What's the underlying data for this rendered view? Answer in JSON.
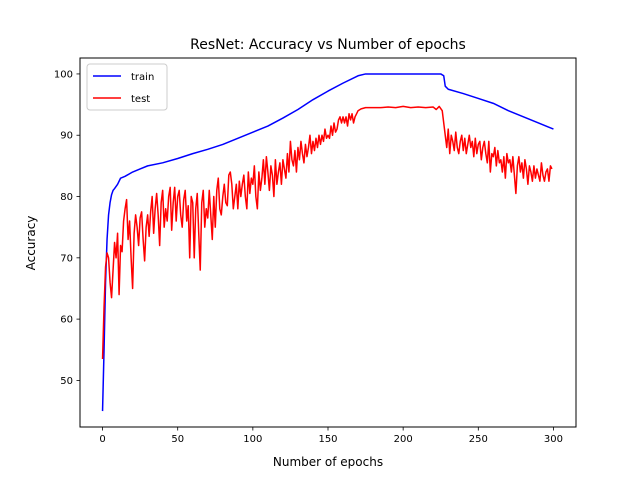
{
  "chart_data": {
    "type": "line",
    "title": "ResNet: Accuracy vs Number of epochs",
    "xlabel": "Number of epochs",
    "ylabel": "Accuracy",
    "xlim": [
      -15,
      315
    ],
    "ylim": [
      42.4,
      102.6
    ],
    "xticks": [
      0,
      50,
      100,
      150,
      200,
      250,
      300
    ],
    "yticks": [
      50,
      60,
      70,
      80,
      90,
      100
    ],
    "grid": false,
    "legend_placement": "top-left",
    "series": [
      {
        "name": "train",
        "color": "#0000ff",
        "points": [
          [
            0,
            45.0
          ],
          [
            1,
            55.0
          ],
          [
            2,
            66.0
          ],
          [
            3,
            73.0
          ],
          [
            4,
            77.0
          ],
          [
            5,
            79.0
          ],
          [
            6,
            80.3
          ],
          [
            7,
            81.0
          ],
          [
            8,
            81.3
          ],
          [
            10,
            82.0
          ],
          [
            12,
            83.0
          ],
          [
            15,
            83.3
          ],
          [
            20,
            84.0
          ],
          [
            25,
            84.5
          ],
          [
            30,
            85.0
          ],
          [
            40,
            85.5
          ],
          [
            50,
            86.2
          ],
          [
            60,
            87.0
          ],
          [
            70,
            87.7
          ],
          [
            80,
            88.5
          ],
          [
            90,
            89.5
          ],
          [
            100,
            90.5
          ],
          [
            110,
            91.5
          ],
          [
            120,
            92.8
          ],
          [
            130,
            94.2
          ],
          [
            140,
            95.8
          ],
          [
            150,
            97.2
          ],
          [
            160,
            98.5
          ],
          [
            170,
            99.7
          ],
          [
            175,
            100.0
          ],
          [
            190,
            100.0
          ],
          [
            200,
            100.0
          ],
          [
            210,
            100.0
          ],
          [
            220,
            100.0
          ],
          [
            225,
            100.0
          ],
          [
            227,
            99.7
          ],
          [
            228,
            98.0
          ],
          [
            230,
            97.5
          ],
          [
            240,
            96.8
          ],
          [
            250,
            96.0
          ],
          [
            260,
            95.2
          ],
          [
            270,
            94.0
          ],
          [
            280,
            93.0
          ],
          [
            290,
            92.0
          ],
          [
            300,
            91.0
          ]
        ]
      },
      {
        "name": "test",
        "color": "#ff0000",
        "points": [
          [
            0,
            53.5
          ],
          [
            1,
            62.0
          ],
          [
            2,
            68.5
          ],
          [
            3,
            70.8
          ],
          [
            4,
            70.0
          ],
          [
            5,
            66.0
          ],
          [
            6,
            63.5
          ],
          [
            7,
            68.0
          ],
          [
            8,
            72.5
          ],
          [
            9,
            70.0
          ],
          [
            10,
            74.0
          ],
          [
            11,
            64.0
          ],
          [
            12,
            72.0
          ],
          [
            13,
            71.0
          ],
          [
            14,
            76.0
          ],
          [
            15,
            78.0
          ],
          [
            16,
            79.5
          ],
          [
            17,
            73.0
          ],
          [
            18,
            76.0
          ],
          [
            19,
            70.0
          ],
          [
            20,
            65.0
          ],
          [
            21,
            74.0
          ],
          [
            22,
            77.0
          ],
          [
            23,
            75.0
          ],
          [
            24,
            72.0
          ],
          [
            25,
            76.5
          ],
          [
            26,
            77.5
          ],
          [
            27,
            73.0
          ],
          [
            28,
            69.5
          ],
          [
            29,
            75.0
          ],
          [
            30,
            77.0
          ],
          [
            31,
            73.5
          ],
          [
            32,
            77.5
          ],
          [
            33,
            80.0
          ],
          [
            34,
            74.0
          ],
          [
            35,
            78.0
          ],
          [
            36,
            80.5
          ],
          [
            37,
            77.0
          ],
          [
            38,
            72.0
          ],
          [
            39,
            79.0
          ],
          [
            40,
            81.0
          ],
          [
            41,
            75.0
          ],
          [
            42,
            78.0
          ],
          [
            43,
            76.0
          ],
          [
            44,
            80.0
          ],
          [
            45,
            81.5
          ],
          [
            46,
            74.5
          ],
          [
            47,
            79.0
          ],
          [
            48,
            81.5
          ],
          [
            49,
            76.0
          ],
          [
            50,
            80.0
          ],
          [
            51,
            81.0
          ],
          [
            52,
            77.0
          ],
          [
            53,
            75.0
          ],
          [
            54,
            79.5
          ],
          [
            55,
            81.0
          ],
          [
            56,
            76.0
          ],
          [
            57,
            78.5
          ],
          [
            58,
            70.0
          ],
          [
            59,
            80.0
          ],
          [
            60,
            79.0
          ],
          [
            61,
            70.0
          ],
          [
            62,
            78.0
          ],
          [
            63,
            80.5
          ],
          [
            64,
            74.0
          ],
          [
            65,
            68.0
          ],
          [
            66,
            79.0
          ],
          [
            67,
            81.0
          ],
          [
            68,
            75.0
          ],
          [
            69,
            78.0
          ],
          [
            70,
            76.5
          ],
          [
            71,
            81.0
          ],
          [
            72,
            77.0
          ],
          [
            73,
            73.0
          ],
          [
            74,
            80.0
          ],
          [
            75,
            75.0
          ],
          [
            76,
            81.0
          ],
          [
            77,
            83.0
          ],
          [
            78,
            78.0
          ],
          [
            79,
            77.0
          ],
          [
            80,
            80.0
          ],
          [
            81,
            82.0
          ],
          [
            82,
            79.0
          ],
          [
            83,
            78.5
          ],
          [
            84,
            83.5
          ],
          [
            85,
            84.0
          ],
          [
            86,
            82.0
          ],
          [
            87,
            78.0
          ],
          [
            88,
            80.0
          ],
          [
            89,
            82.0
          ],
          [
            90,
            78.0
          ],
          [
            91,
            82.5
          ],
          [
            92,
            80.0
          ],
          [
            93,
            82.0
          ],
          [
            94,
            83.5
          ],
          [
            95,
            80.0
          ],
          [
            96,
            78.0
          ],
          [
            97,
            84.0
          ],
          [
            98,
            80.5
          ],
          [
            99,
            83.0
          ],
          [
            100,
            82.0
          ],
          [
            101,
            85.0
          ],
          [
            102,
            80.0
          ],
          [
            103,
            78.0
          ],
          [
            104,
            84.0
          ],
          [
            105,
            81.0
          ],
          [
            106,
            83.0
          ],
          [
            107,
            86.0
          ],
          [
            108,
            82.0
          ],
          [
            109,
            86.5
          ],
          [
            110,
            84.0
          ],
          [
            111,
            81.0
          ],
          [
            112,
            85.0
          ],
          [
            113,
            83.5
          ],
          [
            114,
            80.0
          ],
          [
            115,
            86.0
          ],
          [
            116,
            82.0
          ],
          [
            117,
            84.0
          ],
          [
            118,
            85.5
          ],
          [
            119,
            82.0
          ],
          [
            120,
            86.0
          ],
          [
            121,
            84.5
          ],
          [
            122,
            83.0
          ],
          [
            123,
            87.0
          ],
          [
            124,
            84.0
          ],
          [
            125,
            89.0
          ],
          [
            126,
            86.0
          ],
          [
            127,
            85.0
          ],
          [
            128,
            87.5
          ],
          [
            129,
            84.0
          ],
          [
            130,
            88.0
          ],
          [
            131,
            86.0
          ],
          [
            132,
            89.0
          ],
          [
            133,
            87.0
          ],
          [
            134,
            85.5
          ],
          [
            135,
            88.5
          ],
          [
            136,
            86.5
          ],
          [
            137,
            88.0
          ],
          [
            138,
            90.0
          ],
          [
            139,
            87.0
          ],
          [
            140,
            89.0
          ],
          [
            141,
            87.5
          ],
          [
            142,
            89.5
          ],
          [
            143,
            88.0
          ],
          [
            144,
            90.0
          ],
          [
            145,
            88.5
          ],
          [
            146,
            90.0
          ],
          [
            147,
            89.0
          ],
          [
            148,
            91.0
          ],
          [
            149,
            89.5
          ],
          [
            150,
            90.0
          ],
          [
            151,
            89.5
          ],
          [
            152,
            91.5
          ],
          [
            153,
            90.0
          ],
          [
            154,
            92.0
          ],
          [
            155,
            90.5
          ],
          [
            156,
            91.0
          ],
          [
            157,
            92.5
          ],
          [
            158,
            93.0
          ],
          [
            159,
            92.0
          ],
          [
            160,
            93.0
          ],
          [
            161,
            92.0
          ],
          [
            162,
            93.0
          ],
          [
            163,
            91.5
          ],
          [
            164,
            93.5
          ],
          [
            165,
            92.5
          ],
          [
            166,
            93.5
          ],
          [
            167,
            92.0
          ],
          [
            168,
            93.0
          ],
          [
            169,
            93.5
          ],
          [
            170,
            94.0
          ],
          [
            172,
            94.3
          ],
          [
            175,
            94.5
          ],
          [
            180,
            94.5
          ],
          [
            185,
            94.5
          ],
          [
            190,
            94.6
          ],
          [
            195,
            94.5
          ],
          [
            200,
            94.7
          ],
          [
            205,
            94.5
          ],
          [
            210,
            94.6
          ],
          [
            215,
            94.5
          ],
          [
            220,
            94.6
          ],
          [
            222,
            94.2
          ],
          [
            224,
            94.7
          ],
          [
            226,
            94.0
          ],
          [
            227,
            92.0
          ],
          [
            228,
            90.0
          ],
          [
            229,
            88.0
          ],
          [
            230,
            91.0
          ],
          [
            231,
            87.0
          ],
          [
            232,
            90.0
          ],
          [
            233,
            89.0
          ],
          [
            234,
            87.5
          ],
          [
            235,
            90.5
          ],
          [
            236,
            88.0
          ],
          [
            237,
            87.0
          ],
          [
            238,
            89.0
          ],
          [
            239,
            90.0
          ],
          [
            240,
            87.5
          ],
          [
            241,
            89.5
          ],
          [
            242,
            87.0
          ],
          [
            243,
            88.5
          ],
          [
            244,
            90.0
          ],
          [
            245,
            88.0
          ],
          [
            246,
            89.0
          ],
          [
            247,
            86.5
          ],
          [
            248,
            89.5
          ],
          [
            249,
            87.0
          ],
          [
            250,
            88.5
          ],
          [
            251,
            89.0
          ],
          [
            252,
            86.0
          ],
          [
            253,
            88.0
          ],
          [
            254,
            89.0
          ],
          [
            255,
            87.0
          ],
          [
            256,
            85.5
          ],
          [
            257,
            89.0
          ],
          [
            258,
            84.0
          ],
          [
            259,
            87.0
          ],
          [
            260,
            86.5
          ],
          [
            261,
            88.0
          ],
          [
            262,
            85.0
          ],
          [
            263,
            87.5
          ],
          [
            264,
            85.5
          ],
          [
            265,
            86.0
          ],
          [
            266,
            84.0
          ],
          [
            267,
            86.5
          ],
          [
            268,
            83.0
          ],
          [
            269,
            87.0
          ],
          [
            270,
            85.5
          ],
          [
            271,
            86.0
          ],
          [
            272,
            84.0
          ],
          [
            273,
            86.5
          ],
          [
            274,
            83.5
          ],
          [
            275,
            80.5
          ],
          [
            276,
            85.0
          ],
          [
            277,
            86.5
          ],
          [
            278,
            84.0
          ],
          [
            279,
            85.5
          ],
          [
            280,
            83.0
          ],
          [
            281,
            86.0
          ],
          [
            282,
            84.5
          ],
          [
            283,
            82.0
          ],
          [
            284,
            85.0
          ],
          [
            285,
            84.0
          ],
          [
            286,
            82.5
          ],
          [
            287,
            85.0
          ],
          [
            288,
            83.0
          ],
          [
            289,
            84.5
          ],
          [
            290,
            83.5
          ],
          [
            291,
            82.5
          ],
          [
            292,
            85.5
          ],
          [
            293,
            83.5
          ],
          [
            294,
            82.5
          ],
          [
            295,
            84.0
          ],
          [
            296,
            84.5
          ],
          [
            297,
            82.5
          ],
          [
            298,
            85.0
          ],
          [
            299,
            84.5
          ]
        ]
      }
    ]
  }
}
